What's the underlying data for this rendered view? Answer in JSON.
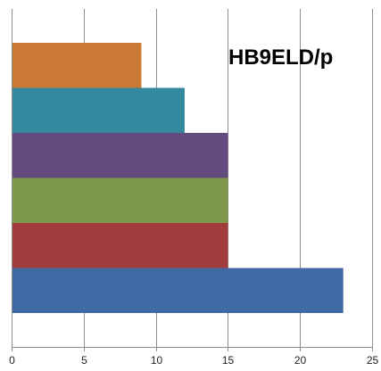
{
  "chart_data": {
    "type": "bar",
    "orientation": "horizontal",
    "title": "HB9ELD/p",
    "xlabel": "",
    "ylabel": "",
    "xlim": [
      0,
      25
    ],
    "x_ticks": [
      0,
      5,
      10,
      15,
      20,
      25
    ],
    "grid": true,
    "legend": "none",
    "bars": [
      {
        "value": 23,
        "color": "#3f6aa4"
      },
      {
        "value": 15,
        "color": "#a03c3c"
      },
      {
        "value": 15,
        "color": "#7e994a"
      },
      {
        "value": 15,
        "color": "#634a7f"
      },
      {
        "value": 12,
        "color": "#34899f"
      },
      {
        "value": 9,
        "color": "#cb7835"
      }
    ]
  }
}
